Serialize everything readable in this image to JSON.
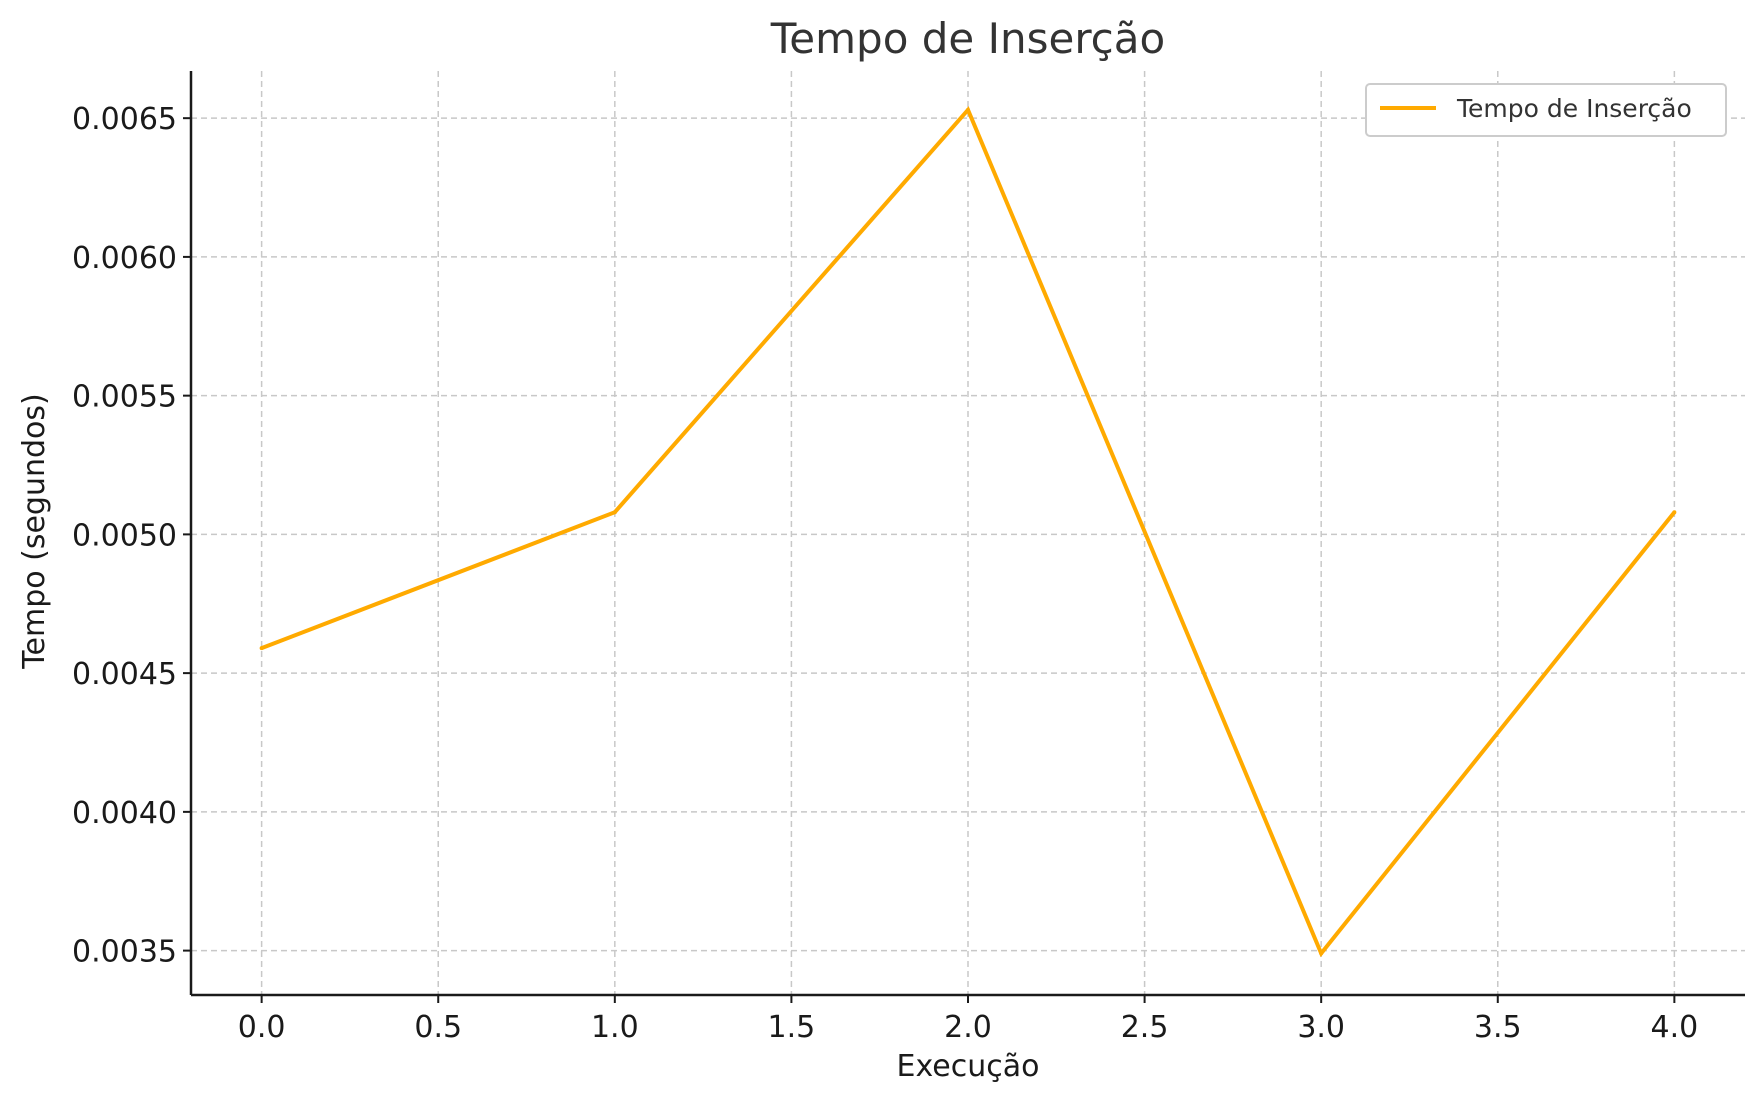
{
  "chart_data": {
    "type": "line",
    "title": "Tempo de Inserção",
    "xlabel": "Execução",
    "ylabel": "Tempo (segundos)",
    "x": [
      0,
      1,
      2,
      3,
      4
    ],
    "xlim": [
      -0.2,
      4.2
    ],
    "ylim": [
      0.00334,
      0.00667
    ],
    "x_ticks": [
      "0.0",
      "0.5",
      "1.0",
      "1.5",
      "2.0",
      "2.5",
      "3.0",
      "3.5",
      "4.0"
    ],
    "y_ticks": [
      "0.0035",
      "0.0040",
      "0.0045",
      "0.0050",
      "0.0055",
      "0.0060",
      "0.0065"
    ],
    "grid": true,
    "grid_style": "dashed",
    "legend_position": "top-right",
    "series": [
      {
        "name": "Tempo de Inserção",
        "color": "#FFAA00",
        "values": [
          0.00459,
          0.00508,
          0.00653,
          0.00349,
          0.00508
        ]
      }
    ]
  }
}
